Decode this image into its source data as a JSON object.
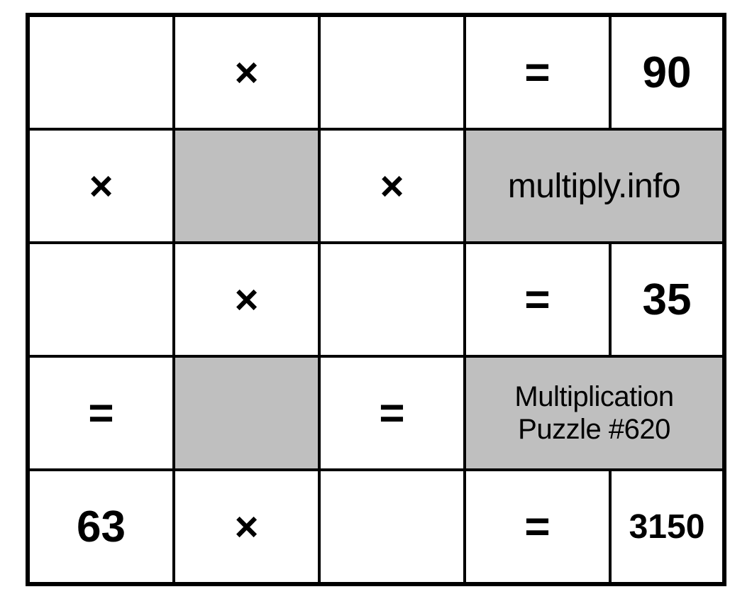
{
  "puzzle": {
    "type": "multiplication-grid",
    "grid_cols": 5,
    "grid_rows": 5,
    "border_color": "#000000",
    "background_color": "#ffffff",
    "shaded_color": "#bfbfbf",
    "text_color": "#000000",
    "symbols": {
      "multiply": "×",
      "equals": "="
    },
    "labels": {
      "site": "multiply.info",
      "title": "Multiplication\nPuzzle #620"
    },
    "values": {
      "row1_result": "90",
      "row3_result": "35",
      "row5_a": "63",
      "row5_result": "3150"
    },
    "font": {
      "symbol_size_pt": 44,
      "number_size_pt": 46,
      "text_lg_pt": 36,
      "text_md_pt": 30,
      "weight_bold": 800
    }
  }
}
